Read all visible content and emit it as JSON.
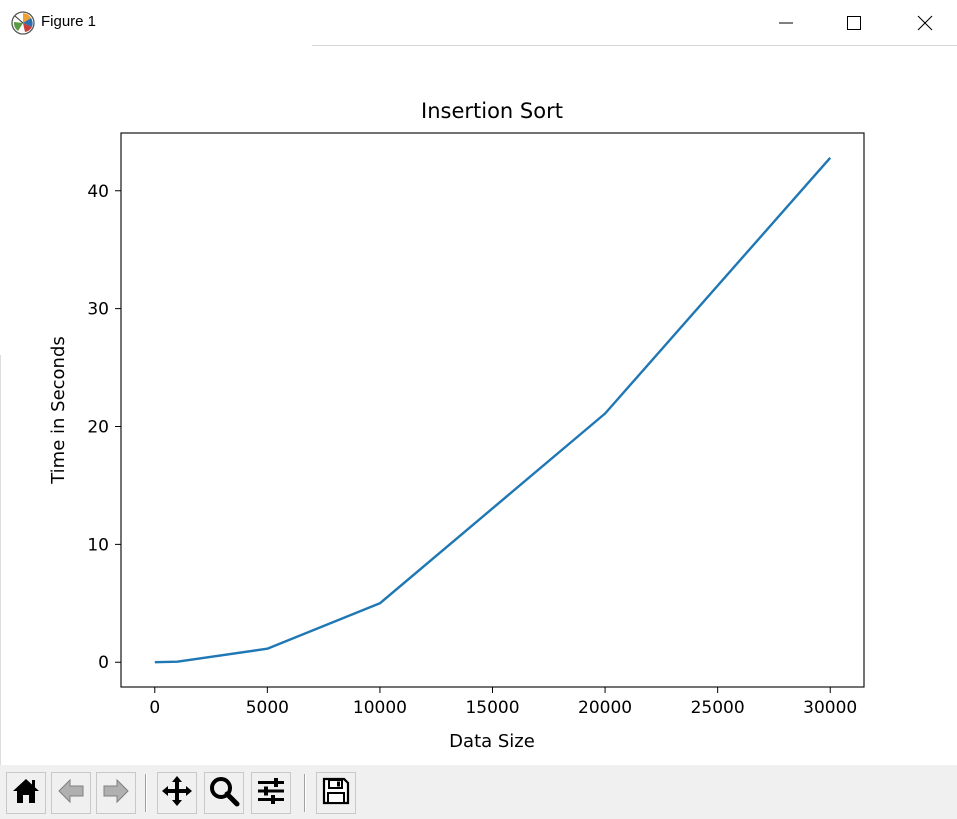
{
  "window": {
    "title": "Figure 1",
    "app_icon": "matplotlib-icon",
    "controls": [
      {
        "name": "minimize",
        "icon": "minimize-icon"
      },
      {
        "name": "maximize",
        "icon": "maximize-icon"
      },
      {
        "name": "close",
        "icon": "close-icon"
      }
    ]
  },
  "toolbar": {
    "buttons": [
      {
        "name": "home",
        "icon": "home-icon"
      },
      {
        "name": "back",
        "icon": "back-arrow-icon"
      },
      {
        "name": "forward",
        "icon": "forward-arrow-icon"
      },
      {
        "name": "pan",
        "icon": "move-icon"
      },
      {
        "name": "zoom",
        "icon": "zoom-icon"
      },
      {
        "name": "configure-subplots",
        "icon": "sliders-icon"
      },
      {
        "name": "save",
        "icon": "save-icon"
      }
    ]
  },
  "chart_data": {
    "type": "line",
    "title": "Insertion Sort",
    "xlabel": "Data Size",
    "ylabel": "Time in Seconds",
    "xlim": [
      -1500,
      31500
    ],
    "ylim": [
      -2.1,
      44.9
    ],
    "xticks": [
      0,
      5000,
      10000,
      15000,
      20000,
      25000,
      30000
    ],
    "yticks": [
      0,
      10,
      20,
      30,
      40
    ],
    "grid": false,
    "line_color": "#1f77b4",
    "series": [
      {
        "x": [
          1,
          1000,
          5000,
          10000,
          20000,
          30000
        ],
        "values": [
          0.0,
          0.05,
          1.15,
          5.0,
          21.1,
          42.8
        ]
      }
    ]
  }
}
